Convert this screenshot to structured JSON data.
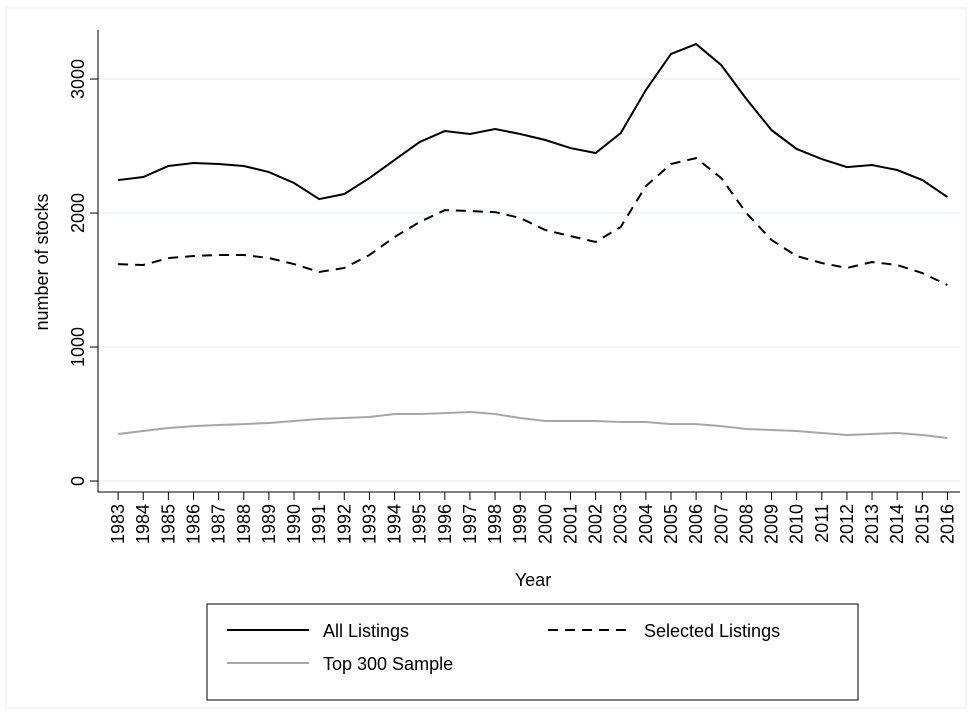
{
  "chart_data": {
    "type": "line",
    "x_label": "Year",
    "y_label": "number of stocks",
    "x": [
      1983,
      1984,
      1985,
      1986,
      1987,
      1988,
      1989,
      1990,
      1991,
      1992,
      1993,
      1994,
      1995,
      1996,
      1997,
      1998,
      1999,
      2000,
      2001,
      2002,
      2003,
      2004,
      2005,
      2006,
      2007,
      2008,
      2009,
      2010,
      2011,
      2012,
      2013,
      2014,
      2015,
      2016
    ],
    "series": [
      {
        "name": "All Listings",
        "color": "#000000",
        "style": "solid",
        "values": [
          2246,
          2269,
          2351,
          2373,
          2366,
          2351,
          2306,
          2224,
          2104,
          2142,
          2261,
          2396,
          2530,
          2612,
          2590,
          2627,
          2590,
          2545,
          2485,
          2448,
          2597,
          2918,
          3187,
          3261,
          3104,
          2851,
          2619,
          2478,
          2403,
          2343,
          2358,
          2321,
          2246,
          2119
        ]
      },
      {
        "name": "Selected Listings",
        "color": "#000000",
        "style": "dashed",
        "values": [
          1619,
          1612,
          1664,
          1679,
          1687,
          1687,
          1664,
          1619,
          1560,
          1590,
          1687,
          1821,
          1933,
          2022,
          2015,
          2007,
          1963,
          1873,
          1828,
          1784,
          1896,
          2201,
          2366,
          2410,
          2261,
          2000,
          1799,
          1679,
          1627,
          1590,
          1634,
          1612,
          1552,
          1463
        ]
      },
      {
        "name": "Top 300 Sample",
        "color": "#a6a6a6",
        "style": "solid",
        "values": [
          351,
          373,
          396,
          410,
          418,
          425,
          433,
          448,
          463,
          470,
          478,
          500,
          500,
          507,
          515,
          500,
          470,
          448,
          448,
          448,
          440,
          440,
          425,
          425,
          410,
          388,
          381,
          373,
          358,
          343,
          351,
          358,
          343,
          321
        ]
      }
    ],
    "xlim": [
      1982.2,
      2016.5
    ],
    "xticks": [
      1983,
      1984,
      1985,
      1986,
      1987,
      1988,
      1989,
      1990,
      1991,
      1992,
      1993,
      1994,
      1995,
      1996,
      1997,
      1998,
      1999,
      2000,
      2001,
      2002,
      2003,
      2004,
      2005,
      2006,
      2007,
      2008,
      2009,
      2010,
      2011,
      2012,
      2013,
      2014,
      2015,
      2016
    ],
    "ylim": [
      -82,
      3366
    ],
    "yticks": [
      0,
      1000,
      2000,
      3000
    ],
    "grid": true
  }
}
